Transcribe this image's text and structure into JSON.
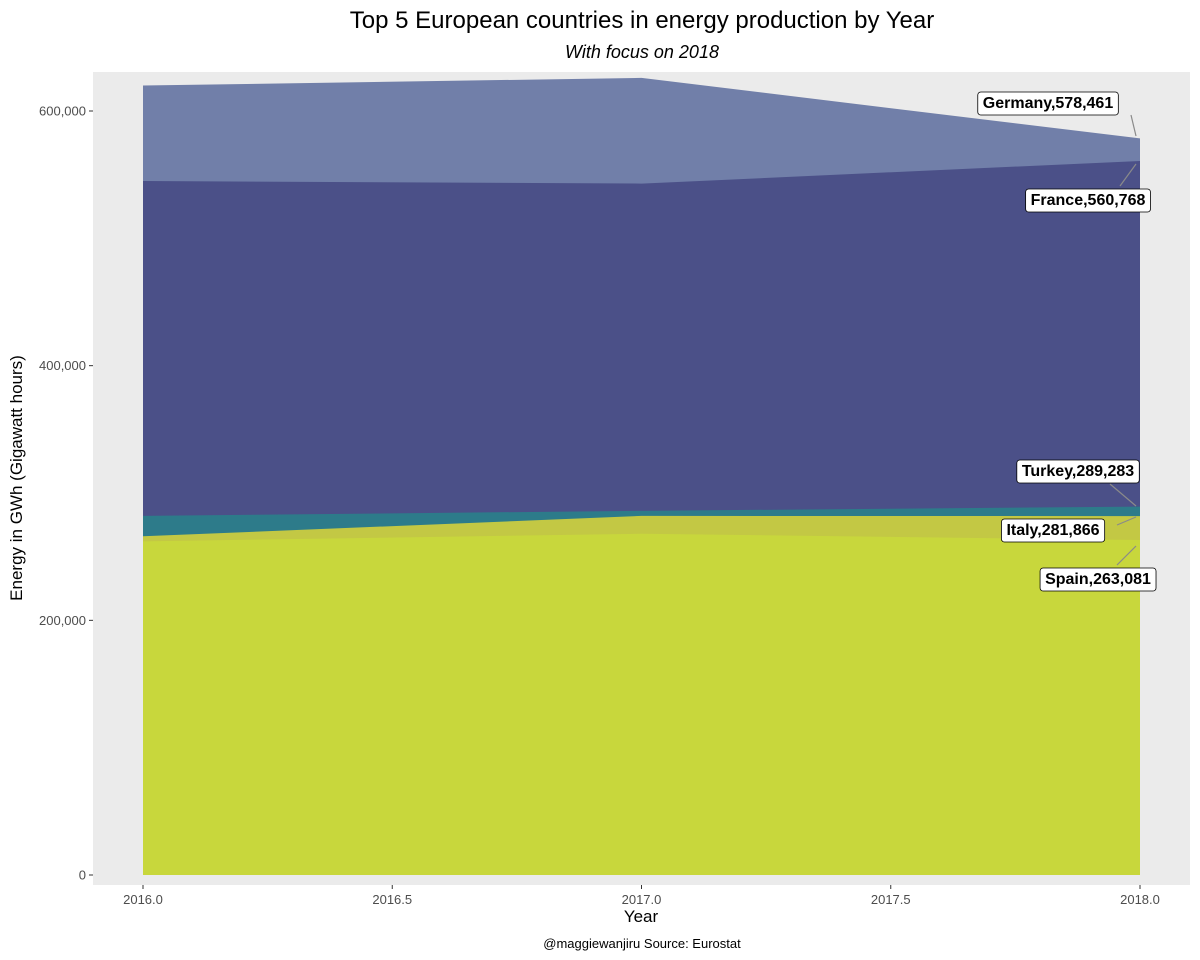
{
  "chart_data": {
    "type": "area",
    "stacked": true,
    "title": "Top 5 European countries in energy production by Year",
    "subtitle": "With focus on 2018",
    "xlabel": "Year",
    "ylabel": "Energy in GWh (Gigawatt hours)",
    "caption": "@maggiewanjiru Source: Eurostat",
    "xlim": [
      2016,
      2018
    ],
    "ylim": [
      0,
      630000
    ],
    "x_ticks": [
      2016.0,
      2016.5,
      2017.0,
      2017.5,
      2018.0
    ],
    "x_tick_labels": [
      "2016.0",
      "2016.5",
      "2017.0",
      "2017.5",
      "2018.0"
    ],
    "y_ticks": [
      0,
      200000,
      400000,
      600000
    ],
    "y_tick_labels": [
      "0",
      "200,000",
      "400,000",
      "600,000"
    ],
    "x": [
      2016,
      2017,
      2018
    ],
    "series": [
      {
        "name": "Spain",
        "color": "#c8d73c",
        "values": [
          262000,
          268000,
          263081
        ]
      },
      {
        "name": "Italy",
        "color": "#c3c844",
        "values": [
          266000,
          282000,
          281866
        ]
      },
      {
        "name": "Turkey",
        "color": "#2d7b8a",
        "values": [
          282000,
          286000,
          289283
        ]
      },
      {
        "name": "France",
        "color": "#4b5088",
        "values": [
          545000,
          543000,
          560768
        ]
      },
      {
        "name": "Germany",
        "color": "#717fa9",
        "values": [
          620000,
          626000,
          578461
        ]
      }
    ],
    "labels": [
      {
        "series": "Germany",
        "text": "Germany,578,461"
      },
      {
        "series": "France",
        "text": "France,560,768"
      },
      {
        "series": "Turkey",
        "text": "Turkey,289,283"
      },
      {
        "series": "Italy",
        "text": "Italy,281,866"
      },
      {
        "series": "Spain",
        "text": "Spain,263,081"
      }
    ],
    "panel_background": "#ebebeb",
    "grid": false,
    "legend": "none"
  }
}
